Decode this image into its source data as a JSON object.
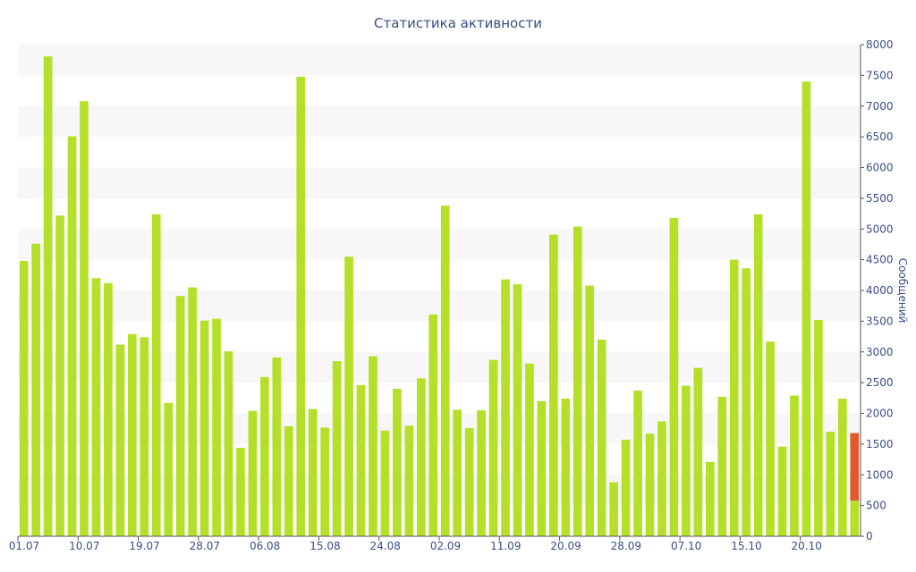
{
  "chart_data": {
    "type": "bar",
    "title": "Статистика активности",
    "ylabel": "Сообщений",
    "xlabel": "",
    "ylim": [
      0,
      8000
    ],
    "ytick_step": 500,
    "grid": "horizontal-bands",
    "colors": {
      "bar": "#b5e02a",
      "highlight": "#e05a2b",
      "text": "#3a4e86",
      "band": "#f7f7f7",
      "axis": "#555555"
    },
    "x_tick_labels": [
      "01.07",
      "10.07",
      "19.07",
      "28.07",
      "06.08",
      "15.08",
      "24.08",
      "02.09",
      "11.09",
      "20.09",
      "28.09",
      "07.10",
      "15.10",
      "20.10"
    ],
    "x_tick_positions": [
      0,
      5,
      10,
      15,
      20,
      25,
      30,
      35,
      40,
      45,
      50,
      55,
      60,
      65
    ],
    "values": [
      4480,
      4760,
      7810,
      5220,
      6510,
      7080,
      4200,
      4120,
      3120,
      3290,
      3240,
      5240,
      2170,
      3910,
      4050,
      3510,
      3540,
      3010,
      1440,
      2040,
      2590,
      2910,
      1790,
      7480,
      2070,
      1770,
      2850,
      4550,
      2460,
      2930,
      1720,
      2400,
      1800,
      2570,
      3610,
      5380,
      2060,
      1760,
      2050,
      2870,
      4180,
      4100,
      2810,
      2200,
      4910,
      2240,
      5040,
      4080,
      3200,
      880,
      1570,
      2370,
      1670,
      1870,
      5180,
      2450,
      2740,
      1210,
      2270,
      4500,
      4360,
      5240,
      3170,
      1460,
      2290,
      7400,
      3520,
      1700,
      2240
    ],
    "last_bar": {
      "value": 1680,
      "highlight_from": 580,
      "note": ""
    }
  }
}
